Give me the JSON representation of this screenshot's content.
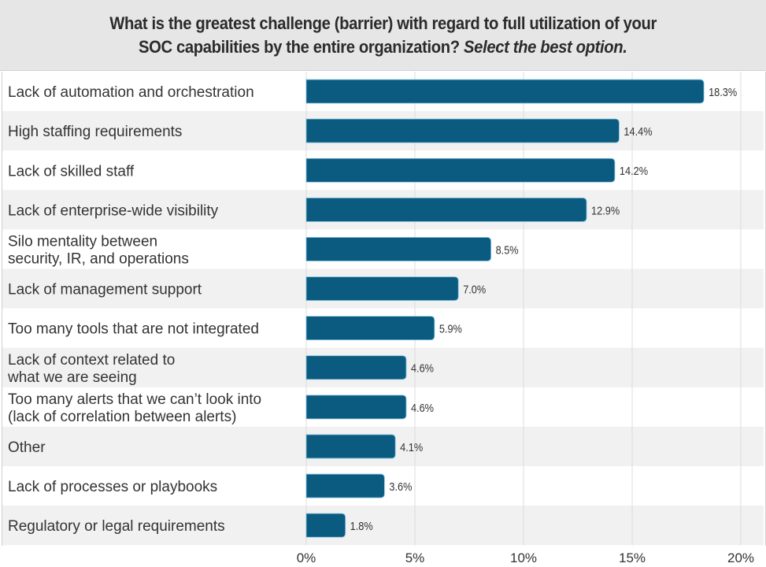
{
  "chart_data": {
    "type": "bar",
    "orientation": "horizontal",
    "title_line1": "What is the greatest challenge (barrier) with regard to full utilization of your",
    "title_line2_plain": "SOC capabilities by the entire organization?",
    "title_line2_italic": "Select the best option.",
    "categories": [
      [
        "Lack of automation and orchestration"
      ],
      [
        "High staffing requirements"
      ],
      [
        "Lack of skilled staff"
      ],
      [
        "Lack of enterprise-wide visibility"
      ],
      [
        "Silo mentality between",
        "security, IR, and operations"
      ],
      [
        "Lack of management support"
      ],
      [
        "Too many tools that are not integrated"
      ],
      [
        "Lack of context related to",
        "what we are seeing"
      ],
      [
        "Too many alerts that we can’t look into",
        "(lack of correlation between alerts)"
      ],
      [
        "Other"
      ],
      [
        "Lack of processes or playbooks"
      ],
      [
        "Regulatory or legal requirements"
      ]
    ],
    "values": [
      18.3,
      14.4,
      14.2,
      12.9,
      8.5,
      7.0,
      5.9,
      4.6,
      4.6,
      4.1,
      3.6,
      1.8
    ],
    "value_labels": [
      "18.3%",
      "14.4%",
      "14.2%",
      "12.9%",
      "8.5%",
      "7.0%",
      "5.9%",
      "4.6%",
      "4.6%",
      "4.1%",
      "3.6%",
      "1.8%"
    ],
    "xlim": [
      0,
      20
    ],
    "xticks": [
      0,
      5,
      10,
      15,
      20
    ],
    "xtick_labels": [
      "0%",
      "5%",
      "10%",
      "15%",
      "20%"
    ],
    "xlabel": "",
    "ylabel": "",
    "grid": true,
    "legend": "none",
    "colors": {
      "bar": "#0b5a80",
      "bar_edge": "#7fc1dd",
      "row_alt": "#f1f1f1",
      "row": "#ffffff",
      "grid": "#dcdcdc",
      "header_bg": "#e6e6e6"
    }
  }
}
